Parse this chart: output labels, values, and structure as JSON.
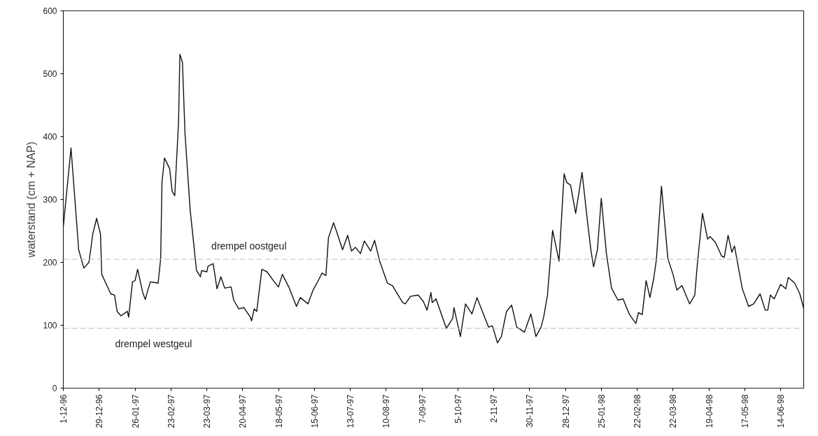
{
  "chart_data": {
    "type": "line",
    "ylabel": "waterstand (cm + NAP)",
    "xlim": [
      "1996-12-01",
      "1998-07-02"
    ],
    "ylim": [
      0,
      600
    ],
    "yticks": [
      0,
      100,
      200,
      300,
      400,
      500,
      600
    ],
    "xticks": [
      {
        "value": "1996-12-01",
        "label": "1-12-96"
      },
      {
        "value": "1996-12-29",
        "label": "29-12-96"
      },
      {
        "value": "1997-01-26",
        "label": "26-01-97"
      },
      {
        "value": "1997-02-23",
        "label": "23-02-97"
      },
      {
        "value": "1997-03-23",
        "label": "23-03-97"
      },
      {
        "value": "1997-04-20",
        "label": "20-04-97"
      },
      {
        "value": "1997-05-18",
        "label": "18-05-97"
      },
      {
        "value": "1997-06-15",
        "label": "15-06-97"
      },
      {
        "value": "1997-07-13",
        "label": "13-07-97"
      },
      {
        "value": "1997-08-10",
        "label": "10-08-97"
      },
      {
        "value": "1997-09-07",
        "label": "7-09-97"
      },
      {
        "value": "1997-10-05",
        "label": "5-10-97"
      },
      {
        "value": "1997-11-02",
        "label": "2-11-97"
      },
      {
        "value": "1997-11-30",
        "label": "30-11-97"
      },
      {
        "value": "1997-12-28",
        "label": "28-12-97"
      },
      {
        "value": "1998-01-25",
        "label": "25-01-98"
      },
      {
        "value": "1998-02-22",
        "label": "22-02-98"
      },
      {
        "value": "1998-03-22",
        "label": "22-03-98"
      },
      {
        "value": "1998-04-19",
        "label": "19-04-98"
      },
      {
        "value": "1998-05-17",
        "label": "17-05-98"
      },
      {
        "value": "1998-06-14",
        "label": "14-06-98"
      }
    ],
    "grid": false,
    "marker": "none",
    "line_style": "solid",
    "ref_lines": [
      {
        "axis": "y",
        "value": 205,
        "label": "drempel oostgeul",
        "color": "#bbbbbb",
        "line_style": "dashed"
      },
      {
        "axis": "y",
        "value": 95,
        "label": "drempel westgeul",
        "color": "#bbbbbb",
        "line_style": "dashed"
      }
    ],
    "series": [
      {
        "color": "#111111",
        "x": [
          "1996-12-01",
          "1996-12-07",
          "1996-12-13",
          "1996-12-17",
          "1996-12-21",
          "1996-12-24",
          "1996-12-27",
          "1996-12-30",
          "1996-12-31",
          "1997-01-07",
          "1997-01-10",
          "1997-01-12",
          "1997-01-15",
          "1997-01-20",
          "1997-01-21",
          "1997-01-24",
          "1997-01-26",
          "1997-01-28",
          "1997-02-01",
          "1997-02-03",
          "1997-02-05",
          "1997-02-07",
          "1997-02-10",
          "1997-02-13",
          "1997-02-15",
          "1997-02-16",
          "1997-02-18",
          "1997-02-22",
          "1997-02-24",
          "1997-02-26",
          "1997-03-01",
          "1997-03-02",
          "1997-03-04",
          "1997-03-06",
          "1997-03-10",
          "1997-03-14",
          "1997-03-15",
          "1997-03-18",
          "1997-03-19",
          "1997-03-23",
          "1997-03-24",
          "1997-03-28",
          "1997-03-31",
          "1997-04-03",
          "1997-04-06",
          "1997-04-11",
          "1997-04-13",
          "1997-04-17",
          "1997-04-21",
          "1997-04-23",
          "1997-04-26",
          "1997-04-27",
          "1997-04-29",
          "1997-05-01",
          "1997-05-05",
          "1997-05-09",
          "1997-05-14",
          "1997-05-18",
          "1997-05-21",
          "1997-05-26",
          "1997-06-01",
          "1997-06-04",
          "1997-06-10",
          "1997-06-14",
          "1997-06-17",
          "1997-06-21",
          "1997-06-24",
          "1997-06-26",
          "1997-06-30",
          "1997-07-03",
          "1997-07-07",
          "1997-07-11",
          "1997-07-14",
          "1997-07-17",
          "1997-07-21",
          "1997-07-24",
          "1997-07-29",
          "1997-08-01",
          "1997-08-05",
          "1997-08-11",
          "1997-08-15",
          "1997-08-17",
          "1997-08-23",
          "1997-08-25",
          "1997-08-29",
          "1997-09-04",
          "1997-09-08",
          "1997-09-11",
          "1997-09-14",
          "1997-09-15",
          "1997-09-18",
          "1997-09-26",
          "1997-10-01",
          "1997-10-02",
          "1997-10-07",
          "1997-10-11",
          "1997-10-16",
          "1997-10-20",
          "1997-10-23",
          "1997-10-29",
          "1997-11-01",
          "1997-11-05",
          "1997-11-08",
          "1997-11-12",
          "1997-11-16",
          "1997-11-20",
          "1997-11-26",
          "1997-12-01",
          "1997-12-05",
          "1997-12-09",
          "1997-12-11",
          "1997-12-14",
          "1997-12-18",
          "1997-12-23",
          "1997-12-27",
          "1997-12-29",
          "1998-01-01",
          "1998-01-05",
          "1998-01-10",
          "1998-01-14",
          "1998-01-17",
          "1998-01-19",
          "1998-01-22",
          "1998-01-25",
          "1998-01-29",
          "1998-02-02",
          "1998-02-07",
          "1998-02-11",
          "1998-02-16",
          "1998-02-21",
          "1998-02-23",
          "1998-02-26",
          "1998-03-01",
          "1998-03-04",
          "1998-03-07",
          "1998-03-09",
          "1998-03-13",
          "1998-03-18",
          "1998-03-22",
          "1998-03-25",
          "1998-03-29",
          "1998-04-04",
          "1998-04-08",
          "1998-04-10",
          "1998-04-14",
          "1998-04-18",
          "1998-04-20",
          "1998-04-24",
          "1998-04-29",
          "1998-05-01",
          "1998-05-04",
          "1998-05-07",
          "1998-05-09",
          "1998-05-15",
          "1998-05-20",
          "1998-05-24",
          "1998-05-29",
          "1998-06-02",
          "1998-06-04",
          "1998-06-06",
          "1998-06-09",
          "1998-06-14",
          "1998-06-18",
          "1998-06-20",
          "1998-06-25",
          "1998-06-29",
          "1998-07-02"
        ],
        "values": [
          257,
          382,
          220,
          191,
          200,
          245,
          270,
          245,
          181,
          150,
          148,
          122,
          115,
          122,
          113,
          169,
          171,
          189,
          152,
          141,
          156,
          169,
          168,
          167,
          206,
          327,
          366,
          349,
          313,
          306,
          425,
          531,
          518,
          405,
          284,
          206,
          187,
          177,
          187,
          185,
          194,
          198,
          158,
          177,
          159,
          161,
          140,
          126,
          128,
          122,
          113,
          107,
          126,
          122,
          189,
          185,
          171,
          161,
          181,
          161,
          130,
          144,
          134,
          156,
          167,
          183,
          179,
          239,
          263,
          245,
          220,
          243,
          218,
          224,
          214,
          234,
          218,
          235,
          202,
          167,
          163,
          156,
          136,
          134,
          146,
          148,
          138,
          124,
          152,
          136,
          142,
          95,
          111,
          128,
          82,
          134,
          118,
          144,
          128,
          97,
          99,
          72,
          82,
          122,
          132,
          97,
          89,
          118,
          82,
          97,
          113,
          148,
          251,
          202,
          341,
          327,
          323,
          278,
          343,
          269,
          218,
          193,
          220,
          302,
          214,
          159,
          140,
          142,
          117,
          103,
          120,
          117,
          171,
          144,
          175,
          204,
          321,
          206,
          181,
          156,
          163,
          134,
          148,
          197,
          278,
          237,
          241,
          232,
          210,
          208,
          243,
          216,
          226,
          159,
          130,
          134,
          150,
          124,
          124,
          148,
          142,
          165,
          158,
          176,
          167,
          150,
          127
        ]
      }
    ]
  }
}
